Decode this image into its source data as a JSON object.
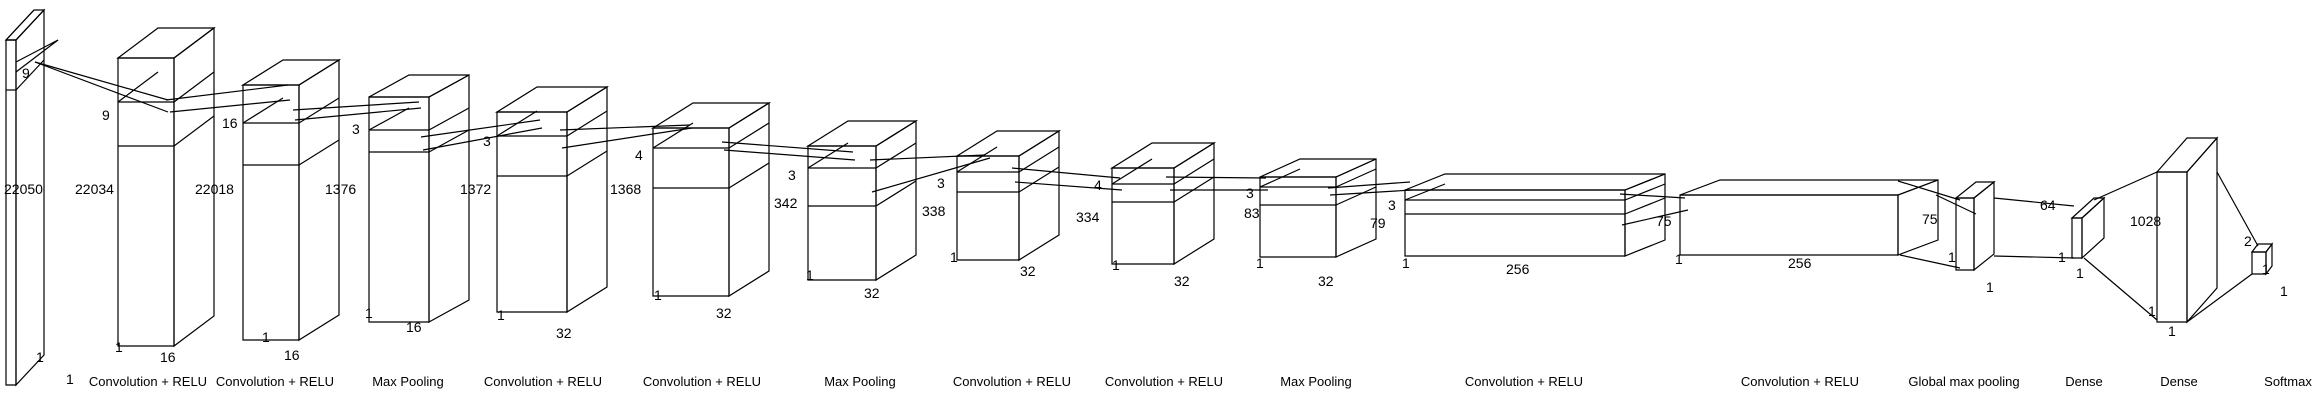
{
  "layers": [
    {
      "caption": "",
      "labels": [
        "9",
        "22050",
        "1",
        "1"
      ]
    },
    {
      "caption": "Convolution + RELU",
      "labels": [
        "9",
        "22034",
        "1",
        "16"
      ]
    },
    {
      "caption": "Convolution + RELU",
      "labels": [
        "16",
        "22018",
        "1",
        "16"
      ]
    },
    {
      "caption": "Max Pooling",
      "labels": [
        "3",
        "1376",
        "1",
        "16"
      ]
    },
    {
      "caption": "Convolution + RELU",
      "labels": [
        "3",
        "1372",
        "1",
        "32"
      ]
    },
    {
      "caption": "Convolution + RELU",
      "labels": [
        "4",
        "1368",
        "1",
        "32"
      ]
    },
    {
      "caption": "Max Pooling",
      "labels": [
        "3",
        "342",
        "1",
        "32"
      ]
    },
    {
      "caption": "Convolution + RELU",
      "labels": [
        "3",
        "338",
        "1",
        "32"
      ]
    },
    {
      "caption": "Convolution + RELU",
      "labels": [
        "4",
        "334",
        "1",
        "32"
      ]
    },
    {
      "caption": "Max Pooling",
      "labels": [
        "3",
        "83",
        "1",
        "32"
      ]
    },
    {
      "caption": "Convolution + RELU",
      "labels": [
        "3",
        "79",
        "1",
        "256"
      ]
    },
    {
      "caption": "Convolution + RELU",
      "labels": [
        "75",
        "1",
        "256"
      ]
    },
    {
      "caption": "Global max pooling",
      "labels": [
        "75",
        "1",
        "1"
      ]
    },
    {
      "caption": "Dense",
      "labels": [
        "64",
        "1",
        "1"
      ]
    },
    {
      "caption": "Dense",
      "labels": [
        "1028",
        "1",
        "1"
      ]
    },
    {
      "caption": "Softmax",
      "labels": [
        "2",
        "1",
        "1"
      ]
    }
  ]
}
